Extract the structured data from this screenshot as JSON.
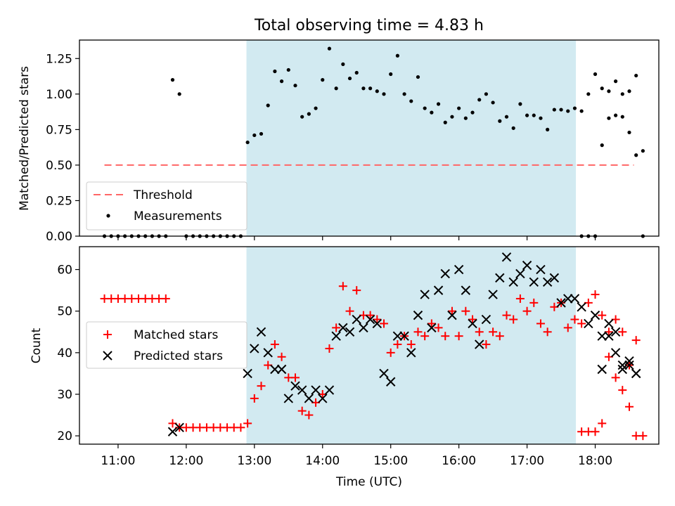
{
  "figure": {
    "title": "Total observing time = 4.83 h",
    "xlabel": "Time (UTC)"
  },
  "colors": {
    "shade": "#add8e6",
    "threshold": "#ff6666",
    "matched": "#ff0000",
    "predicted": "#000000",
    "measurement": "#000000"
  },
  "chart_data": [
    {
      "type": "scatter",
      "ylabel": "Matched/Predicted stars",
      "xlim": [
        "10:26",
        "18:56"
      ],
      "ylim": [
        0,
        1.38
      ],
      "x_ticks": [
        "11:00",
        "12:00",
        "13:00",
        "14:00",
        "15:00",
        "16:00",
        "17:00",
        "18:00"
      ],
      "y_ticks": [
        "0.00",
        "0.25",
        "0.50",
        "0.75",
        "1.00",
        "1.25"
      ],
      "shaded_region": [
        "12:53",
        "17:43"
      ],
      "legend_position": "lower left",
      "threshold": {
        "name": "Threshold",
        "y": 0.5,
        "x_range": [
          "10:48",
          "18:34"
        ]
      },
      "series": [
        {
          "name": "Measurements",
          "points": [
            [
              "10:48",
              0
            ],
            [
              "10:54",
              0
            ],
            [
              "11:00",
              0
            ],
            [
              "11:06",
              0
            ],
            [
              "11:12",
              0
            ],
            [
              "11:18",
              0
            ],
            [
              "11:24",
              0
            ],
            [
              "11:30",
              0
            ],
            [
              "11:36",
              0
            ],
            [
              "11:42",
              0
            ],
            [
              "11:48",
              1.1
            ],
            [
              "11:54",
              1.0
            ],
            [
              "12:00",
              0
            ],
            [
              "12:06",
              0
            ],
            [
              "12:12",
              0
            ],
            [
              "12:18",
              0
            ],
            [
              "12:24",
              0
            ],
            [
              "12:30",
              0
            ],
            [
              "12:36",
              0
            ],
            [
              "12:42",
              0
            ],
            [
              "12:48",
              0
            ],
            [
              "12:54",
              0.66
            ],
            [
              "13:00",
              0.71
            ],
            [
              "13:06",
              0.72
            ],
            [
              "13:12",
              0.92
            ],
            [
              "13:18",
              1.16
            ],
            [
              "13:24",
              1.09
            ],
            [
              "13:30",
              1.17
            ],
            [
              "13:36",
              1.06
            ],
            [
              "13:42",
              0.84
            ],
            [
              "13:48",
              0.86
            ],
            [
              "13:54",
              0.9
            ],
            [
              "14:00",
              1.1
            ],
            [
              "14:06",
              1.32
            ],
            [
              "14:12",
              1.04
            ],
            [
              "14:18",
              1.21
            ],
            [
              "14:24",
              1.11
            ],
            [
              "14:30",
              1.15
            ],
            [
              "14:36",
              1.04
            ],
            [
              "14:42",
              1.04
            ],
            [
              "14:48",
              1.02
            ],
            [
              "14:54",
              1.0
            ],
            [
              "15:00",
              1.14
            ],
            [
              "15:06",
              1.27
            ],
            [
              "15:12",
              1.0
            ],
            [
              "15:18",
              0.95
            ],
            [
              "15:24",
              1.12
            ],
            [
              "15:30",
              0.9
            ],
            [
              "15:36",
              0.87
            ],
            [
              "15:42",
              0.93
            ],
            [
              "15:48",
              0.8
            ],
            [
              "15:54",
              0.84
            ],
            [
              "16:00",
              0.9
            ],
            [
              "16:06",
              0.83
            ],
            [
              "16:12",
              0.87
            ],
            [
              "16:18",
              0.96
            ],
            [
              "16:24",
              1.0
            ],
            [
              "16:30",
              0.94
            ],
            [
              "16:36",
              0.81
            ],
            [
              "16:42",
              0.84
            ],
            [
              "16:48",
              0.76
            ],
            [
              "16:54",
              0.93
            ],
            [
              "17:00",
              0.85
            ],
            [
              "17:06",
              0.85
            ],
            [
              "17:12",
              0.83
            ],
            [
              "17:18",
              0.75
            ],
            [
              "17:24",
              0.89
            ],
            [
              "17:30",
              0.89
            ],
            [
              "17:36",
              0.88
            ],
            [
              "17:42",
              0.9
            ],
            [
              "17:48",
              0.88
            ],
            [
              "17:54",
              1.0
            ],
            [
              "18:00",
              1.14
            ],
            [
              "18:06",
              1.04
            ],
            [
              "18:12",
              1.02
            ],
            [
              "18:18",
              1.09
            ],
            [
              "18:24",
              1.0
            ],
            [
              "18:30",
              1.02
            ],
            [
              "18:36",
              1.13
            ],
            [
              "18:42",
              0.6
            ],
            [
              "17:48",
              0
            ],
            [
              "17:54",
              0
            ],
            [
              "18:00",
              0
            ],
            [
              "18:06",
              0.64
            ],
            [
              "18:12",
              0.83
            ],
            [
              "18:18",
              0.85
            ],
            [
              "18:24",
              0.84
            ],
            [
              "18:30",
              0.73
            ],
            [
              "18:36",
              0.57
            ],
            [
              "18:42",
              0
            ]
          ]
        }
      ]
    },
    {
      "type": "scatter",
      "ylabel": "Count",
      "xlim": [
        "10:26",
        "18:56"
      ],
      "ylim": [
        18,
        65.5
      ],
      "x_ticks": [
        "11:00",
        "12:00",
        "13:00",
        "14:00",
        "15:00",
        "16:00",
        "17:00",
        "18:00"
      ],
      "y_ticks": [
        "20",
        "30",
        "40",
        "50",
        "60"
      ],
      "shaded_region": [
        "12:53",
        "17:43"
      ],
      "legend_position": "center left",
      "series": [
        {
          "name": "Matched stars",
          "marker": "plus",
          "points": [
            [
              "10:48",
              53
            ],
            [
              "10:54",
              53
            ],
            [
              "11:00",
              53
            ],
            [
              "11:06",
              53
            ],
            [
              "11:12",
              53
            ],
            [
              "11:18",
              53
            ],
            [
              "11:24",
              53
            ],
            [
              "11:30",
              53
            ],
            [
              "11:36",
              53
            ],
            [
              "11:42",
              53
            ],
            [
              "11:48",
              23
            ],
            [
              "11:54",
              22
            ],
            [
              "12:00",
              22
            ],
            [
              "12:06",
              22
            ],
            [
              "12:12",
              22
            ],
            [
              "12:18",
              22
            ],
            [
              "12:24",
              22
            ],
            [
              "12:30",
              22
            ],
            [
              "12:36",
              22
            ],
            [
              "12:42",
              22
            ],
            [
              "12:48",
              22
            ],
            [
              "12:54",
              23
            ],
            [
              "13:00",
              29
            ],
            [
              "13:06",
              32
            ],
            [
              "13:12",
              37
            ],
            [
              "13:18",
              42
            ],
            [
              "13:24",
              39
            ],
            [
              "13:30",
              34
            ],
            [
              "13:36",
              34
            ],
            [
              "13:42",
              26
            ],
            [
              "13:48",
              25
            ],
            [
              "13:54",
              28
            ],
            [
              "14:00",
              30
            ],
            [
              "14:06",
              41
            ],
            [
              "14:12",
              46
            ],
            [
              "14:18",
              56
            ],
            [
              "14:24",
              50
            ],
            [
              "14:30",
              55
            ],
            [
              "14:36",
              49
            ],
            [
              "14:42",
              49
            ],
            [
              "14:48",
              48
            ],
            [
              "14:54",
              47
            ],
            [
              "15:00",
              40
            ],
            [
              "15:06",
              42
            ],
            [
              "15:12",
              44
            ],
            [
              "15:18",
              42
            ],
            [
              "15:24",
              45
            ],
            [
              "15:30",
              44
            ],
            [
              "15:36",
              47
            ],
            [
              "15:42",
              46
            ],
            [
              "15:48",
              44
            ],
            [
              "15:54",
              50
            ],
            [
              "16:00",
              44
            ],
            [
              "16:06",
              50
            ],
            [
              "16:12",
              48
            ],
            [
              "16:18",
              45
            ],
            [
              "16:24",
              42
            ],
            [
              "16:30",
              45
            ],
            [
              "16:36",
              44
            ],
            [
              "16:42",
              49
            ],
            [
              "16:48",
              48
            ],
            [
              "16:54",
              53
            ],
            [
              "17:00",
              50
            ],
            [
              "17:06",
              52
            ],
            [
              "17:12",
              47
            ],
            [
              "17:18",
              45
            ],
            [
              "17:24",
              51
            ],
            [
              "17:30",
              52
            ],
            [
              "17:36",
              46
            ],
            [
              "17:42",
              48
            ],
            [
              "17:48",
              47
            ],
            [
              "17:54",
              52
            ],
            [
              "18:00",
              54
            ],
            [
              "18:06",
              49
            ],
            [
              "18:12",
              45
            ],
            [
              "18:18",
              48
            ],
            [
              "18:24",
              45
            ],
            [
              "18:30",
              37
            ],
            [
              "18:36",
              43
            ],
            [
              "17:48",
              21
            ],
            [
              "17:54",
              21
            ],
            [
              "18:00",
              21
            ],
            [
              "18:06",
              23
            ],
            [
              "18:12",
              39
            ],
            [
              "18:18",
              34
            ],
            [
              "18:24",
              31
            ],
            [
              "18:30",
              27
            ],
            [
              "18:36",
              20
            ],
            [
              "18:42",
              20
            ]
          ]
        },
        {
          "name": "Predicted stars",
          "marker": "x",
          "points": [
            [
              "11:48",
              21
            ],
            [
              "11:54",
              22
            ],
            [
              "12:54",
              35
            ],
            [
              "13:00",
              41
            ],
            [
              "13:06",
              45
            ],
            [
              "13:12",
              40
            ],
            [
              "13:18",
              36
            ],
            [
              "13:24",
              36
            ],
            [
              "13:30",
              29
            ],
            [
              "13:36",
              32
            ],
            [
              "13:42",
              31
            ],
            [
              "13:48",
              29
            ],
            [
              "13:54",
              31
            ],
            [
              "14:00",
              29
            ],
            [
              "14:06",
              31
            ],
            [
              "14:12",
              44
            ],
            [
              "14:18",
              46
            ],
            [
              "14:24",
              45
            ],
            [
              "14:30",
              48
            ],
            [
              "14:36",
              46
            ],
            [
              "14:42",
              48
            ],
            [
              "14:48",
              47
            ],
            [
              "14:54",
              35
            ],
            [
              "15:00",
              33
            ],
            [
              "15:06",
              44
            ],
            [
              "15:12",
              44
            ],
            [
              "15:18",
              40
            ],
            [
              "15:24",
              49
            ],
            [
              "15:30",
              54
            ],
            [
              "15:36",
              46
            ],
            [
              "15:42",
              55
            ],
            [
              "15:48",
              59
            ],
            [
              "15:54",
              49
            ],
            [
              "16:00",
              60
            ],
            [
              "16:06",
              55
            ],
            [
              "16:12",
              47
            ],
            [
              "16:18",
              42
            ],
            [
              "16:24",
              48
            ],
            [
              "16:30",
              54
            ],
            [
              "16:36",
              58
            ],
            [
              "16:42",
              63
            ],
            [
              "16:48",
              57
            ],
            [
              "16:54",
              59
            ],
            [
              "17:00",
              61
            ],
            [
              "17:06",
              57
            ],
            [
              "17:12",
              60
            ],
            [
              "17:18",
              57
            ],
            [
              "17:24",
              58
            ],
            [
              "17:30",
              52
            ],
            [
              "17:36",
              53
            ],
            [
              "17:42",
              53
            ],
            [
              "17:48",
              51
            ],
            [
              "17:54",
              47
            ],
            [
              "18:00",
              49
            ],
            [
              "18:06",
              44
            ],
            [
              "18:12",
              44
            ],
            [
              "18:18",
              45
            ],
            [
              "18:24",
              36
            ],
            [
              "18:30",
              38
            ],
            [
              "18:36",
              35
            ],
            [
              "18:06",
              36
            ],
            [
              "18:12",
              47
            ],
            [
              "18:18",
              40
            ],
            [
              "18:24",
              37
            ],
            [
              "18:30",
              37
            ],
            [
              "18:36",
              35
            ]
          ]
        }
      ]
    }
  ]
}
